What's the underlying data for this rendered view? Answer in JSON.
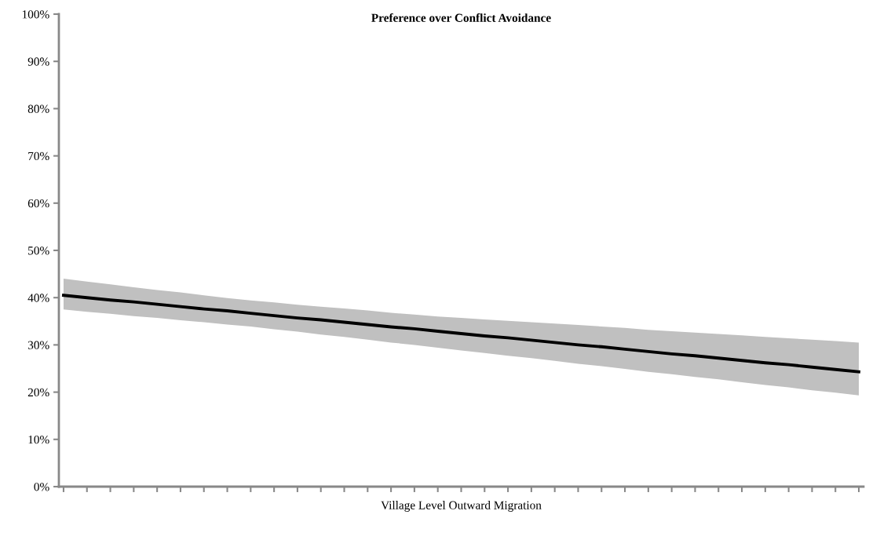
{
  "chart_data": {
    "type": "line",
    "title": "Preference over Conflict Avoidance",
    "xlabel": "Village Level Outward Migration",
    "categories": [
      null,
      null,
      null,
      null,
      null,
      null,
      null,
      null,
      null,
      null,
      null,
      null,
      null,
      null,
      null,
      null,
      null,
      null,
      null,
      null,
      null,
      null,
      null,
      null,
      null,
      null,
      null,
      null,
      null,
      null,
      null,
      null,
      null,
      null,
      null
    ],
    "series": [
      {
        "color": "#000000",
        "values": [
          40.5,
          40.0,
          39.5,
          39.1,
          38.6,
          38.1,
          37.6,
          37.2,
          36.7,
          36.2,
          35.7,
          35.3,
          34.8,
          34.3,
          33.8,
          33.4,
          32.9,
          32.4,
          31.9,
          31.5,
          31.0,
          30.5,
          30.0,
          29.6,
          29.1,
          28.6,
          28.1,
          27.7,
          27.2,
          26.7,
          26.2,
          25.8,
          25.3,
          24.8,
          24.3
        ],
        "upper": [
          44.0,
          43.4,
          42.8,
          42.2,
          41.6,
          41.1,
          40.5,
          39.9,
          39.4,
          39.0,
          38.5,
          38.1,
          37.7,
          37.3,
          36.8,
          36.4,
          36.0,
          35.7,
          35.4,
          35.1,
          34.8,
          34.5,
          34.2,
          33.9,
          33.6,
          33.2,
          32.9,
          32.6,
          32.3,
          32.0,
          31.7,
          31.4,
          31.1,
          30.8,
          30.5
        ],
        "lower": [
          37.5,
          37.0,
          36.6,
          36.1,
          35.7,
          35.2,
          34.8,
          34.3,
          33.9,
          33.3,
          32.8,
          32.2,
          31.7,
          31.1,
          30.5,
          30.0,
          29.4,
          28.8,
          28.3,
          27.7,
          27.2,
          26.6,
          26.0,
          25.5,
          24.9,
          24.3,
          23.8,
          23.2,
          22.7,
          22.1,
          21.5,
          21.0,
          20.4,
          19.9,
          19.3
        ]
      }
    ],
    "ylim": [
      0,
      100
    ],
    "yticks": [
      {
        "value": 0,
        "label": "0%"
      },
      {
        "value": 10,
        "label": "10%"
      },
      {
        "value": 20,
        "label": "20%"
      },
      {
        "value": 30,
        "label": "30%"
      },
      {
        "value": 40,
        "label": "40%"
      },
      {
        "value": 50,
        "label": "50%"
      },
      {
        "value": 60,
        "label": "60%"
      },
      {
        "value": 70,
        "label": "70%"
      },
      {
        "value": 80,
        "label": "80%"
      },
      {
        "value": 90,
        "label": "90%"
      },
      {
        "value": 100,
        "label": "100%"
      }
    ],
    "grid": false,
    "legend": false,
    "marker": "none",
    "line_style": "solid",
    "tick_labels": "y"
  }
}
